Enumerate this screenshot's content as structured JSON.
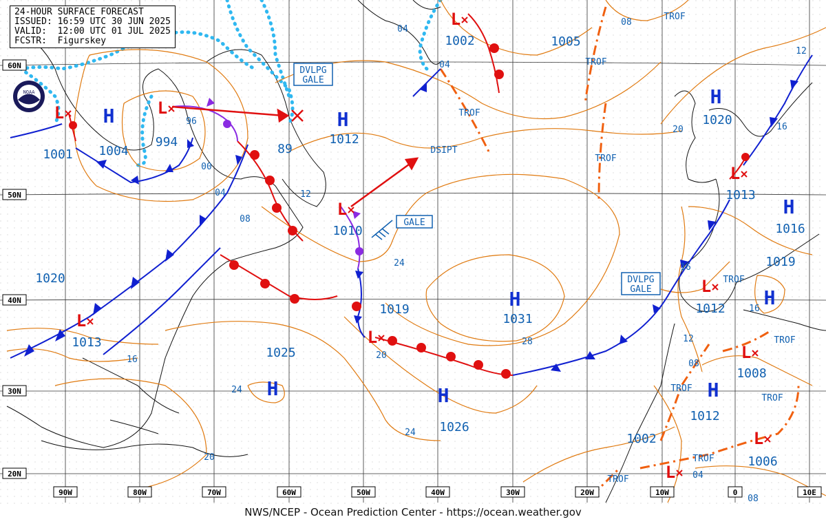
{
  "header": {
    "line1": "24-HOUR SURFACE FORECAST",
    "line2": "ISSUED: 16:59 UTC 30 JUN 2025",
    "line3": "VALID:  12:00 UTC 01 JUL 2025",
    "line4": "FCSTR:  Figurskey"
  },
  "credit": "NWS/NCEP - Ocean Prediction Center - https://ocean.weather.gov",
  "logo": {
    "text": "NOAA",
    "icon": "noaa-logo-icon"
  },
  "lat_labels": [
    "60N",
    "50N",
    "40N",
    "30N",
    "20N"
  ],
  "lon_labels": [
    "90W",
    "80W",
    "70W",
    "60W",
    "50W",
    "40W",
    "30W",
    "20W",
    "10W",
    "0",
    "10E"
  ],
  "highs": [
    {
      "symbol": "H",
      "pressure": "1004"
    },
    {
      "symbol": "H",
      "pressure": "1012"
    },
    {
      "symbol": "H",
      "pressure": "1031"
    },
    {
      "symbol": "H",
      "pressure": "1026"
    },
    {
      "symbol": "H",
      "pressure": "1025"
    },
    {
      "symbol": "H",
      "pressure": "1020"
    },
    {
      "symbol": "H",
      "pressure": "1016"
    },
    {
      "symbol": "H",
      "pressure": "1019"
    },
    {
      "symbol": "H",
      "pressure": "1012"
    }
  ],
  "lows": [
    {
      "symbol": "L",
      "pressure": "1001"
    },
    {
      "symbol": "L",
      "pressure": "994"
    },
    {
      "symbol": "L",
      "pressure": "1002"
    },
    {
      "symbol": "L",
      "pressure": "1010"
    },
    {
      "symbol": "L",
      "pressure": "1019"
    },
    {
      "symbol": "L",
      "pressure": "1013"
    },
    {
      "symbol": "L",
      "pressure": "1013"
    },
    {
      "symbol": "L",
      "pressure": "1012"
    },
    {
      "symbol": "L",
      "pressure": "1008"
    },
    {
      "symbol": "L",
      "pressure": "1006"
    },
    {
      "symbol": "L",
      "pressure": "1002"
    }
  ],
  "standalone_pressures": [
    "1005",
    "1020",
    "89",
    "1019"
  ],
  "warnings": {
    "dvlpg_gale_1": [
      "DVLPG",
      "GALE"
    ],
    "dvlpg_gale_2": [
      "DVLPG",
      "GALE"
    ],
    "gale": "GALE"
  },
  "text_labels": {
    "trof": "TROF",
    "dsipt": "DSIPT"
  },
  "isobar_labels": [
    "04",
    "04",
    "08",
    "96",
    "00",
    "04",
    "08",
    "12",
    "24",
    "28",
    "20",
    "16",
    "24",
    "24",
    "20",
    "20",
    "16",
    "12",
    "08",
    "04",
    "08",
    "16",
    "12"
  ],
  "colors": {
    "isobar": "#e07a10",
    "high": "#1030d0",
    "low": "#e01010",
    "cold_front": "#1020d0",
    "warm_front": "#e01010",
    "occluded": "#8a2be2",
    "trof": "#f06010",
    "ice": "#30b8f0",
    "box": "#1060b0"
  }
}
